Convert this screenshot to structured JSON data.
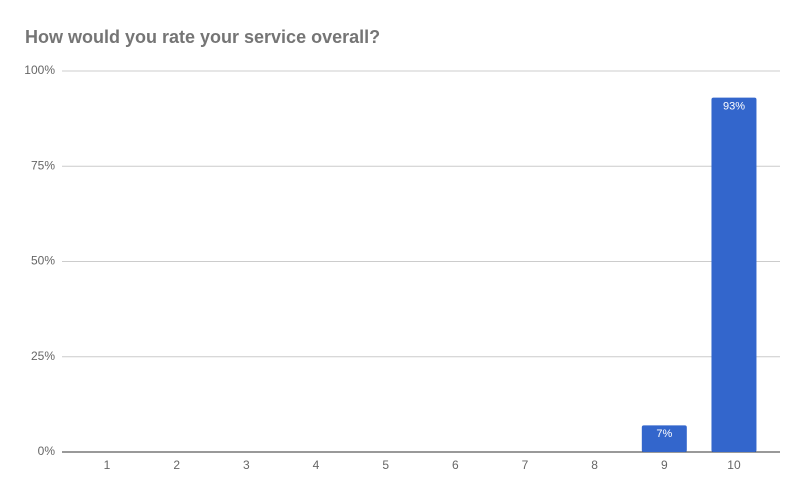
{
  "chart_data": {
    "type": "bar",
    "title": "How would you rate your service overall?",
    "categories": [
      "1",
      "2",
      "3",
      "4",
      "5",
      "6",
      "7",
      "8",
      "9",
      "10"
    ],
    "values": [
      0,
      0,
      0,
      0,
      0,
      0,
      0,
      0,
      7,
      93
    ],
    "value_labels": [
      null,
      null,
      null,
      null,
      null,
      null,
      null,
      null,
      "7%",
      "93%"
    ],
    "color": "#3366cc",
    "ylim": [
      0,
      100
    ],
    "yticks": [
      {
        "value": 0,
        "label": "0%"
      },
      {
        "value": 25,
        "label": "25%"
      },
      {
        "value": 50,
        "label": "50%"
      },
      {
        "value": 75,
        "label": "75%"
      },
      {
        "value": 100,
        "label": "100%"
      }
    ],
    "grid": true
  }
}
